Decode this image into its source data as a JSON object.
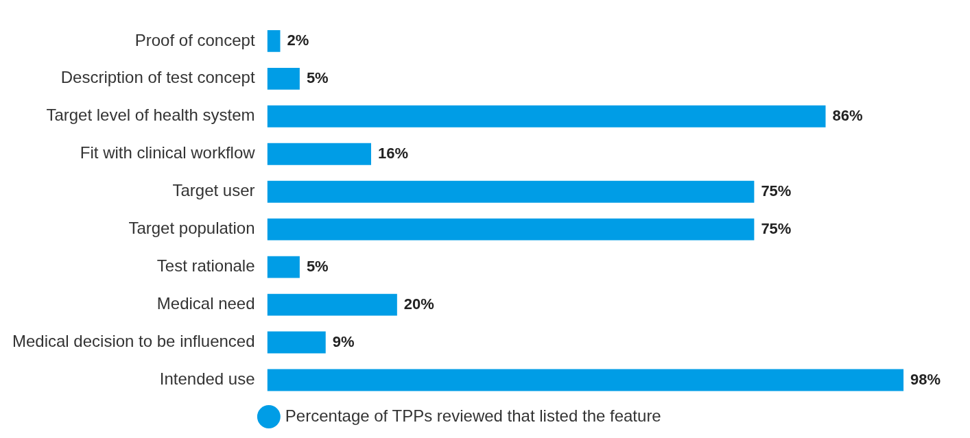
{
  "chart_data": {
    "type": "bar",
    "orientation": "horizontal",
    "categories": [
      "Proof of concept",
      "Description of test concept",
      "Target level of health system",
      "Fit with clinical workflow",
      "Target user",
      "Target population",
      "Test rationale",
      "Medical need",
      "Medical decision to be influenced",
      "Intended use"
    ],
    "series": [
      {
        "name": "Percentage of TPPs reviewed that listed the feature",
        "color": "#009de6",
        "values": [
          2,
          5,
          86,
          16,
          75,
          75,
          5,
          20,
          9,
          98
        ],
        "value_labels": [
          "2%",
          "5%",
          "86%",
          "16%",
          "75%",
          "75%",
          "5%",
          "20%",
          "9%",
          "98%"
        ]
      }
    ],
    "legend": "bottom",
    "grid": false
  }
}
